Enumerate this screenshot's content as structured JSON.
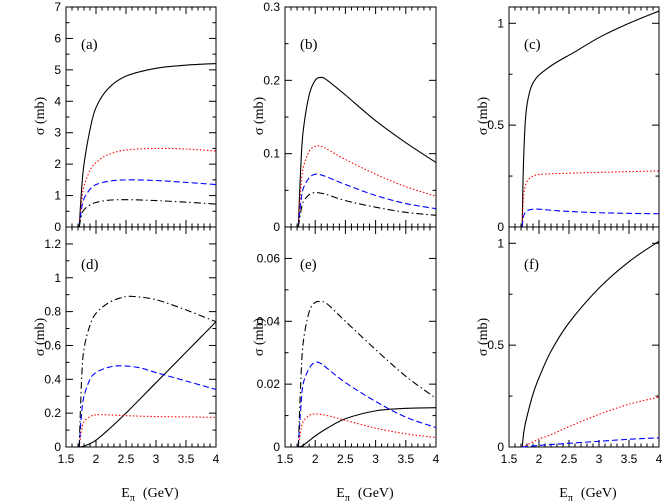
{
  "figure": {
    "x_axis_symbol": "E",
    "x_axis_subscript": "π",
    "x_axis_unit": "(GeV)",
    "y_axis_label": "σ  (mb)"
  },
  "series_styles": {
    "solid": "#000000",
    "dotted": "#ff0000",
    "dashed": "#0000ff",
    "dashdot": "#000000"
  },
  "chart_data": [
    {
      "type": "line",
      "panel": "(a)",
      "xlim": [
        1.5,
        4.0
      ],
      "ylim": [
        0,
        7
      ],
      "xticks": [
        "1.5",
        "2",
        "2.5",
        "3",
        "3.5",
        "4"
      ],
      "yticks": [
        "0",
        "1",
        "2",
        "3",
        "4",
        "5",
        "6",
        "7"
      ],
      "threshold": 1.72,
      "series": [
        {
          "name": "solid",
          "style": "solid",
          "x": [
            1.72,
            1.76,
            1.8,
            1.9,
            2.0,
            2.2,
            2.5,
            3.0,
            3.5,
            4.0
          ],
          "y": [
            0,
            1.2,
            2.0,
            3.1,
            3.8,
            4.4,
            4.8,
            5.05,
            5.15,
            5.2
          ]
        },
        {
          "name": "dotted",
          "style": "dotted",
          "x": [
            1.72,
            1.76,
            1.8,
            1.9,
            2.0,
            2.2,
            2.5,
            3.0,
            3.5,
            4.0
          ],
          "y": [
            0,
            0.8,
            1.3,
            1.8,
            2.05,
            2.3,
            2.45,
            2.5,
            2.48,
            2.42
          ]
        },
        {
          "name": "dashed",
          "style": "dashed",
          "x": [
            1.72,
            1.76,
            1.8,
            1.9,
            2.0,
            2.2,
            2.5,
            3.0,
            3.5,
            4.0
          ],
          "y": [
            0,
            0.6,
            0.9,
            1.2,
            1.35,
            1.45,
            1.5,
            1.48,
            1.42,
            1.35
          ]
        },
        {
          "name": "dashdot",
          "style": "dashdot",
          "x": [
            1.72,
            1.76,
            1.8,
            1.9,
            2.0,
            2.2,
            2.5,
            3.0,
            3.5,
            4.0
          ],
          "y": [
            0,
            0.4,
            0.55,
            0.7,
            0.78,
            0.85,
            0.87,
            0.84,
            0.79,
            0.73
          ]
        }
      ]
    },
    {
      "type": "line",
      "panel": "(b)",
      "xlim": [
        1.5,
        4.0
      ],
      "ylim": [
        0,
        0.3
      ],
      "xticks": [
        "1.5",
        "2",
        "2.5",
        "3",
        "3.5",
        "4"
      ],
      "yticks": [
        "0",
        "0.1",
        "0.2",
        "0.3"
      ],
      "threshold": 1.72,
      "series": [
        {
          "name": "solid",
          "style": "solid",
          "x": [
            1.72,
            1.76,
            1.8,
            1.9,
            2.0,
            2.1,
            2.2,
            2.5,
            3.0,
            3.5,
            4.0
          ],
          "y": [
            0,
            0.08,
            0.13,
            0.18,
            0.2,
            0.204,
            0.2,
            0.18,
            0.145,
            0.115,
            0.088
          ]
        },
        {
          "name": "dotted",
          "style": "dotted",
          "x": [
            1.72,
            1.76,
            1.8,
            1.9,
            2.0,
            2.1,
            2.2,
            2.5,
            3.0,
            3.5,
            4.0
          ],
          "y": [
            0,
            0.05,
            0.08,
            0.103,
            0.11,
            0.11,
            0.106,
            0.092,
            0.072,
            0.055,
            0.042
          ]
        },
        {
          "name": "dashed",
          "style": "dashed",
          "x": [
            1.72,
            1.76,
            1.8,
            1.9,
            2.0,
            2.1,
            2.2,
            2.5,
            3.0,
            3.5,
            4.0
          ],
          "y": [
            0,
            0.032,
            0.052,
            0.067,
            0.072,
            0.071,
            0.068,
            0.058,
            0.043,
            0.032,
            0.025
          ]
        },
        {
          "name": "dashdot",
          "style": "dashdot",
          "x": [
            1.72,
            1.76,
            1.8,
            1.9,
            2.0,
            2.1,
            2.2,
            2.5,
            3.0,
            3.5,
            4.0
          ],
          "y": [
            0,
            0.02,
            0.034,
            0.044,
            0.047,
            0.046,
            0.044,
            0.036,
            0.027,
            0.02,
            0.016
          ]
        }
      ]
    },
    {
      "type": "line",
      "panel": "(c)",
      "xlim": [
        1.5,
        4.0
      ],
      "ylim": [
        0,
        1.08
      ],
      "xticks": [
        "1.5",
        "2",
        "2.5",
        "3",
        "3.5",
        "4"
      ],
      "yticks": [
        "0",
        "0.5",
        "1"
      ],
      "threshold": 1.72,
      "series": [
        {
          "name": "solid",
          "style": "solid",
          "x": [
            1.72,
            1.74,
            1.78,
            1.85,
            1.95,
            2.1,
            2.3,
            2.6,
            3.0,
            3.5,
            4.0
          ],
          "y": [
            0,
            0.3,
            0.55,
            0.67,
            0.73,
            0.77,
            0.81,
            0.86,
            0.93,
            1.0,
            1.06
          ]
        },
        {
          "name": "dotted",
          "style": "dotted",
          "x": [
            1.72,
            1.74,
            1.78,
            1.85,
            1.95,
            2.1,
            2.3,
            2.6,
            3.0,
            3.5,
            4.0
          ],
          "y": [
            0,
            0.14,
            0.21,
            0.24,
            0.255,
            0.26,
            0.262,
            0.265,
            0.268,
            0.272,
            0.275
          ]
        },
        {
          "name": "dashed",
          "style": "dashed",
          "x": [
            1.72,
            1.74,
            1.78,
            1.85,
            1.95,
            2.1,
            2.3,
            2.6,
            3.0,
            3.5,
            4.0
          ],
          "y": [
            0,
            0.05,
            0.075,
            0.085,
            0.088,
            0.085,
            0.08,
            0.075,
            0.07,
            0.067,
            0.065
          ]
        }
      ]
    },
    {
      "type": "line",
      "panel": "(d)",
      "xlim": [
        1.5,
        4.0
      ],
      "ylim": [
        0,
        1.3
      ],
      "xticks": [
        "1.5",
        "2",
        "2.5",
        "3",
        "3.5",
        "4"
      ],
      "yticks": [
        "0",
        "0.2",
        "0.4",
        "0.6",
        "0.8",
        "1",
        "1.2"
      ],
      "threshold": 1.72,
      "series": [
        {
          "name": "solid",
          "style": "solid",
          "x": [
            1.72,
            1.8,
            1.9,
            2.0,
            2.2,
            2.5,
            3.0,
            3.5,
            4.0
          ],
          "y": [
            0,
            0.005,
            0.02,
            0.04,
            0.1,
            0.2,
            0.38,
            0.56,
            0.74
          ]
        },
        {
          "name": "dotted",
          "style": "dotted",
          "x": [
            1.72,
            1.76,
            1.8,
            1.9,
            2.0,
            2.2,
            2.5,
            3.0,
            3.5,
            4.0
          ],
          "y": [
            0,
            0.1,
            0.15,
            0.18,
            0.19,
            0.19,
            0.185,
            0.18,
            0.178,
            0.175
          ]
        },
        {
          "name": "dashed",
          "style": "dashed",
          "x": [
            1.72,
            1.76,
            1.8,
            1.9,
            2.0,
            2.2,
            2.4,
            2.7,
            3.0,
            3.5,
            4.0
          ],
          "y": [
            0,
            0.2,
            0.3,
            0.4,
            0.44,
            0.47,
            0.48,
            0.47,
            0.44,
            0.39,
            0.34
          ]
        },
        {
          "name": "dashdot",
          "style": "dashdot",
          "x": [
            1.72,
            1.76,
            1.8,
            1.9,
            2.0,
            2.2,
            2.4,
            2.6,
            3.0,
            3.5,
            4.0
          ],
          "y": [
            0,
            0.4,
            0.58,
            0.72,
            0.79,
            0.85,
            0.88,
            0.89,
            0.87,
            0.81,
            0.74
          ]
        }
      ]
    },
    {
      "type": "line",
      "panel": "(e)",
      "xlim": [
        1.5,
        4.0
      ],
      "ylim": [
        0,
        0.07
      ],
      "xticks": [
        "1.5",
        "2",
        "2.5",
        "3",
        "3.5",
        "4"
      ],
      "yticks": [
        "0",
        "0.02",
        "0.04",
        "0.06"
      ],
      "threshold": 1.72,
      "series": [
        {
          "name": "solid",
          "style": "solid",
          "x": [
            1.72,
            1.8,
            1.9,
            2.0,
            2.2,
            2.5,
            3.0,
            3.5,
            4.0
          ],
          "y": [
            0,
            0.0005,
            0.002,
            0.0035,
            0.006,
            0.009,
            0.0115,
            0.0123,
            0.0125
          ]
        },
        {
          "name": "dotted",
          "style": "dotted",
          "x": [
            1.72,
            1.76,
            1.8,
            1.9,
            2.0,
            2.2,
            2.5,
            3.0,
            3.5,
            4.0
          ],
          "y": [
            0,
            0.005,
            0.008,
            0.01,
            0.0105,
            0.01,
            0.0085,
            0.006,
            0.0042,
            0.003
          ]
        },
        {
          "name": "dashed",
          "style": "dashed",
          "x": [
            1.72,
            1.76,
            1.8,
            1.9,
            2.0,
            2.1,
            2.2,
            2.5,
            3.0,
            3.5,
            4.0
          ],
          "y": [
            0,
            0.012,
            0.02,
            0.025,
            0.027,
            0.0265,
            0.025,
            0.0205,
            0.0145,
            0.0095,
            0.0062
          ]
        },
        {
          "name": "dashdot",
          "style": "dashdot",
          "x": [
            1.72,
            1.76,
            1.8,
            1.9,
            2.0,
            2.1,
            2.2,
            2.5,
            3.0,
            3.5,
            4.0
          ],
          "y": [
            0,
            0.02,
            0.033,
            0.043,
            0.046,
            0.0462,
            0.0455,
            0.04,
            0.031,
            0.0225,
            0.0155
          ]
        }
      ]
    },
    {
      "type": "line",
      "panel": "(f)",
      "xlim": [
        1.5,
        4.0
      ],
      "ylim": [
        0,
        1.08
      ],
      "xticks": [
        "1.5",
        "2",
        "2.5",
        "3",
        "3.5",
        "4"
      ],
      "yticks": [
        "0",
        "0.5",
        "1"
      ],
      "threshold": 1.72,
      "series": [
        {
          "name": "solid",
          "style": "solid",
          "x": [
            1.72,
            1.75,
            1.8,
            1.9,
            2.0,
            2.2,
            2.5,
            3.0,
            3.5,
            4.0
          ],
          "y": [
            0,
            0.08,
            0.15,
            0.26,
            0.34,
            0.47,
            0.61,
            0.78,
            0.91,
            1.01
          ]
        },
        {
          "name": "dotted",
          "style": "dotted",
          "x": [
            1.72,
            1.8,
            1.9,
            2.0,
            2.2,
            2.5,
            3.0,
            3.5,
            4.0
          ],
          "y": [
            0,
            0.01,
            0.025,
            0.04,
            0.06,
            0.1,
            0.16,
            0.21,
            0.245
          ]
        },
        {
          "name": "dashed",
          "style": "dashed",
          "x": [
            1.72,
            1.8,
            1.9,
            2.0,
            2.2,
            2.5,
            3.0,
            3.5,
            4.0
          ],
          "y": [
            0,
            0.002,
            0.005,
            0.008,
            0.012,
            0.018,
            0.028,
            0.038,
            0.045
          ]
        }
      ]
    }
  ]
}
